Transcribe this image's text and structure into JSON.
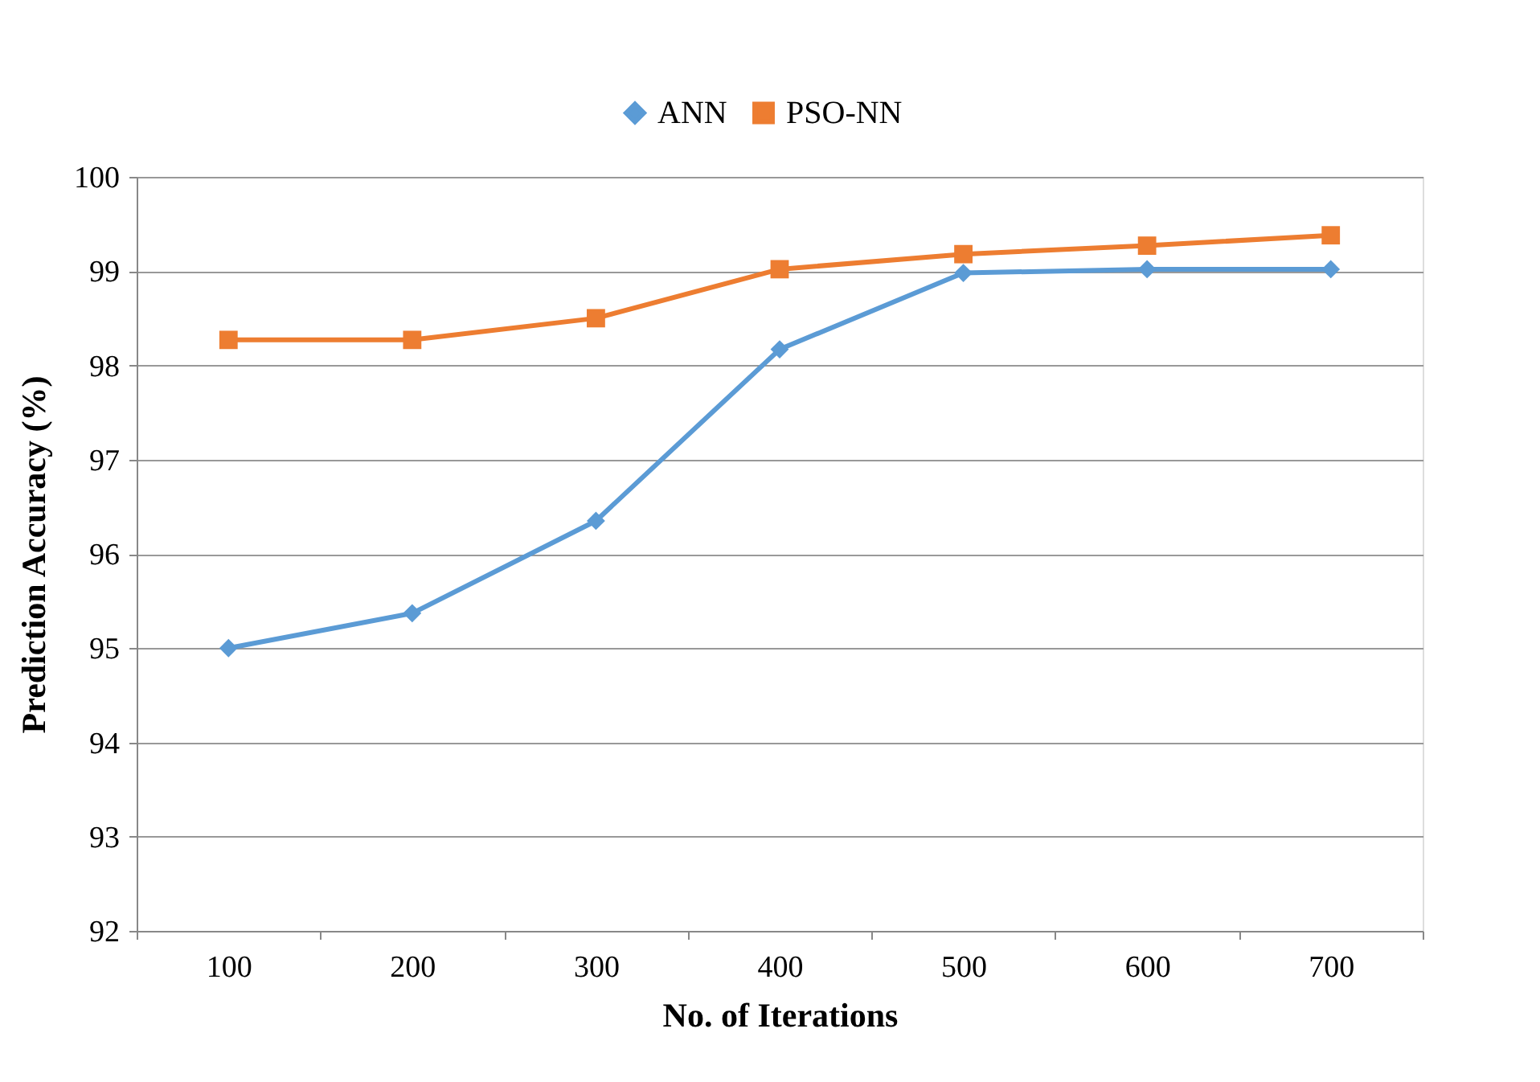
{
  "chart_data": {
    "type": "line",
    "xlabel": "No. of Iterations",
    "ylabel": "Prediction Accuracy (%)",
    "categories": [
      "100",
      "200",
      "300",
      "400",
      "500",
      "600",
      "700"
    ],
    "series": [
      {
        "name": "ANN",
        "color": "#5b9bd5",
        "marker": "diamond",
        "values": [
          95.0,
          95.37,
          96.35,
          98.17,
          98.98,
          99.02,
          99.02
        ]
      },
      {
        "name": "PSO-NN",
        "color": "#ed7d31",
        "marker": "square",
        "values": [
          98.27,
          98.27,
          98.5,
          99.02,
          99.18,
          99.27,
          99.38
        ]
      }
    ],
    "ylim": [
      92,
      100
    ],
    "yticks": [
      92,
      93,
      94,
      95,
      96,
      97,
      98,
      99,
      100
    ],
    "grid": "y",
    "legend": "top",
    "line_style": "solid"
  }
}
